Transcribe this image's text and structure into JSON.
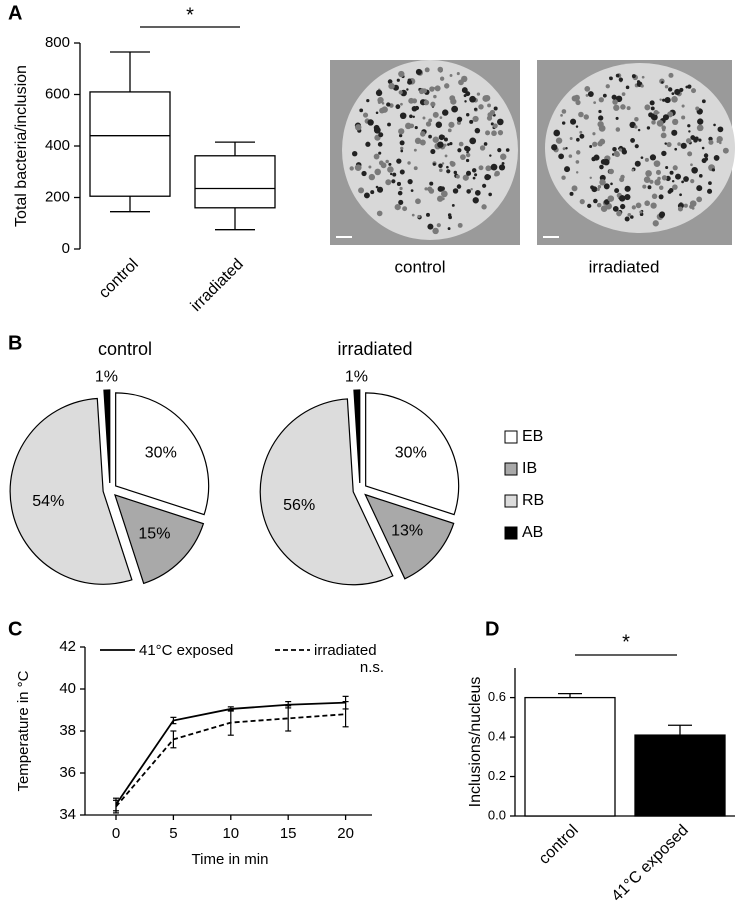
{
  "chart_data": [
    {
      "type": "box",
      "panel_label": "A",
      "ylabel": "Total bacteria/inclusion",
      "significance": "*",
      "categories": [
        "control",
        "irradiated"
      ],
      "boxes": [
        {
          "min": 145,
          "q1": 205,
          "median": 440,
          "q3": 610,
          "max": 765
        },
        {
          "min": 75,
          "q1": 160,
          "median": 235,
          "q3": 362,
          "max": 415
        }
      ],
      "ylim": [
        0,
        800
      ],
      "yticks": [
        0,
        200,
        400,
        600,
        800
      ],
      "image_captions": [
        "control",
        "irradiated"
      ]
    },
    {
      "type": "pie",
      "panel_label": "B",
      "categories": [
        "EB",
        "IB",
        "RB",
        "AB"
      ],
      "colors": [
        "#ffffff",
        "#a9a9a9",
        "#dcdcdc",
        "#000000"
      ],
      "series": [
        {
          "name": "control",
          "values": [
            30,
            15,
            54,
            1
          ],
          "value_labels": [
            "30%",
            "15%",
            "54%",
            "1%"
          ]
        },
        {
          "name": "irradiated",
          "values": [
            30,
            13,
            56,
            1
          ],
          "value_labels": [
            "30%",
            "13%",
            "56%",
            "1%"
          ]
        }
      ]
    },
    {
      "type": "line",
      "panel_label": "C",
      "xlabel": "Time in min",
      "ylabel": "Temperature in °C",
      "annotation": "n.s.",
      "x": [
        0,
        5,
        10,
        15,
        20
      ],
      "series": [
        {
          "name": "41°C exposed",
          "color": "#000000",
          "linestyle": "solid",
          "values": [
            34.5,
            38.5,
            39.05,
            39.25,
            39.35
          ],
          "errors": [
            0.3,
            0.15,
            0.1,
            0.15,
            0.3
          ]
        },
        {
          "name": "irradiated",
          "color": "#000000",
          "linestyle": "dashed",
          "values": [
            34.4,
            37.6,
            38.4,
            38.6,
            38.8
          ],
          "errors": [
            0.3,
            0.4,
            0.6,
            0.6,
            0.6
          ]
        }
      ],
      "xlim": [
        -2.7,
        22.3
      ],
      "xticks": [
        0,
        5,
        10,
        15,
        20
      ],
      "ylim": [
        34,
        42
      ],
      "yticks": [
        34,
        36,
        38,
        40,
        42
      ]
    },
    {
      "type": "bar",
      "panel_label": "D",
      "ylabel": "Inclusions/nucleus",
      "significance": "*",
      "categories": [
        "control",
        "41°C exposed"
      ],
      "values": [
        0.6,
        0.41
      ],
      "errors": [
        0.02,
        0.05
      ],
      "colors": [
        "#ffffff",
        "#000000"
      ],
      "ylim": [
        0,
        0.75
      ],
      "yticks": [
        {
          "value": 0,
          "label": "0.0"
        },
        0.2,
        0.4,
        0.6
      ]
    }
  ]
}
